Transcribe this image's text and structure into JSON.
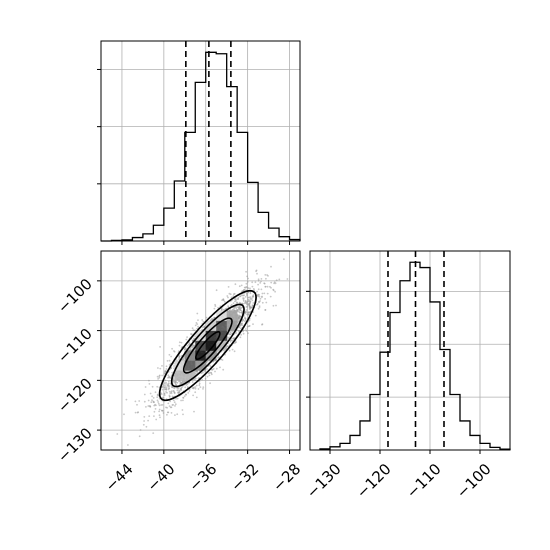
{
  "chart_data": {
    "type": "corner",
    "panels": [
      {
        "name": "hist-param1",
        "type": "histogram",
        "xlim": [
          -46,
          -27
        ],
        "grid": true,
        "bins_edges": [
          -46,
          -45,
          -44,
          -43,
          -42,
          -41,
          -40,
          -39,
          -38,
          -37,
          -36,
          -35,
          -34,
          -33,
          -32,
          -31,
          -30,
          -29,
          -28,
          -27
        ],
        "counts": [
          0,
          2,
          4,
          12,
          25,
          55,
          115,
          210,
          380,
          555,
          660,
          655,
          540,
          380,
          205,
          100,
          45,
          15,
          5
        ],
        "quantiles": [
          -37.9,
          -35.7,
          -33.6
        ],
        "ytick_values": [
          200,
          400,
          600
        ]
      },
      {
        "name": "scatter-density",
        "type": "scatter",
        "xlim": [
          -46,
          -27
        ],
        "ylim": [
          -134,
          -94
        ],
        "x_ticks": [
          -44,
          -40,
          -36,
          -32,
          -28
        ],
        "x_tick_labels": [
          "−44",
          "−40",
          "−36",
          "−32",
          "−28"
        ],
        "y_ticks": [
          -100,
          -110,
          -120,
          -130
        ],
        "y_tick_labels": [
          "−100",
          "−110",
          "−120",
          "−130"
        ],
        "grid": true,
        "center": [
          -35.8,
          -113
        ],
        "std": [
          2.3,
          5.5
        ],
        "correlation": 0.88
      },
      {
        "name": "hist-param2",
        "type": "histogram",
        "xlim": [
          -134,
          -94
        ],
        "grid": true,
        "bins_edges": [
          -132,
          -130,
          -128,
          -126,
          -124,
          -122,
          -120,
          -118,
          -116,
          -114,
          -112,
          -110,
          -108,
          -106,
          -104,
          -102,
          -100,
          -98,
          -96,
          -94
        ],
        "counts": [
          4,
          12,
          25,
          55,
          110,
          210,
          370,
          520,
          640,
          710,
          690,
          560,
          380,
          210,
          110,
          55,
          25,
          10,
          3
        ],
        "quantiles": [
          -118.4,
          -112.9,
          -107.2
        ],
        "x_ticks": [
          -130,
          -120,
          -110,
          -100
        ],
        "x_tick_labels": [
          "−130",
          "−120",
          "−110",
          "−100"
        ],
        "ytick_values": [
          200,
          400,
          600
        ]
      }
    ]
  },
  "colors": {
    "hist_line": "#000000",
    "grid": "#b0b0b0",
    "scatter_points": "#9a9a9a"
  }
}
